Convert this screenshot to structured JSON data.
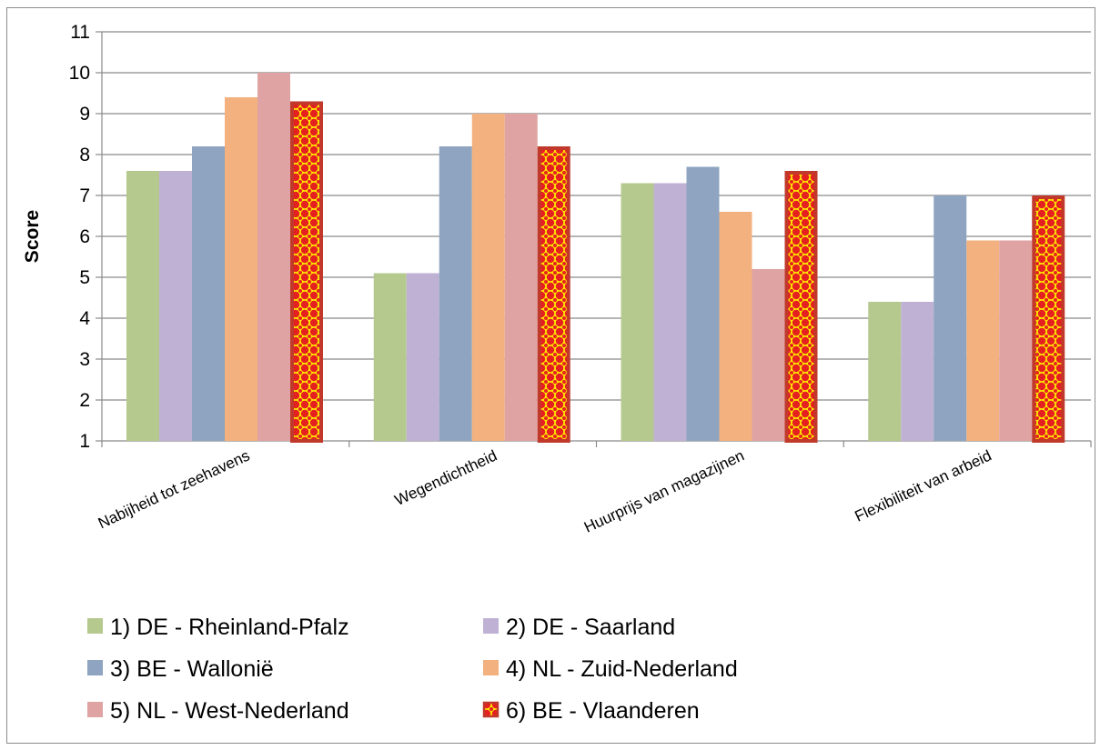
{
  "chart_data": {
    "type": "bar",
    "title": "",
    "xlabel": "",
    "ylabel": "Score",
    "ylim": [
      1,
      11
    ],
    "yticks": [
      1,
      2,
      3,
      4,
      5,
      6,
      7,
      8,
      9,
      10,
      11
    ],
    "grid": true,
    "legend_position": "bottom",
    "categories": [
      "Nabijheid tot zeehavens",
      "Wegendichtheid",
      "Huurprijs van magazijnen",
      "Flexibiliteit van arbeid"
    ],
    "series": [
      {
        "name": "1) DE - Rheinland-Pfalz",
        "color": "#b5c98e",
        "values": [
          7.6,
          5.1,
          7.3,
          4.4
        ]
      },
      {
        "name": "2) DE - Saarland",
        "color": "#bfb1d3",
        "values": [
          7.6,
          5.1,
          7.3,
          4.4
        ]
      },
      {
        "name": "3) BE - Wallonië",
        "color": "#8ea4c1",
        "values": [
          8.2,
          8.2,
          7.7,
          7.0
        ]
      },
      {
        "name": "4) NL - Zuid-Nederland",
        "color": "#f2b17f",
        "values": [
          9.4,
          9.0,
          6.6,
          5.9
        ]
      },
      {
        "name": "5) NL - West-Nederland",
        "color": "#dfa3a3",
        "values": [
          10.0,
          9.0,
          5.2,
          5.9
        ]
      },
      {
        "name": "6) BE - Vlaanderen",
        "color": "#e02020",
        "pattern": "red-yellow-dots",
        "values": [
          9.3,
          8.2,
          7.6,
          7.0
        ]
      }
    ]
  }
}
